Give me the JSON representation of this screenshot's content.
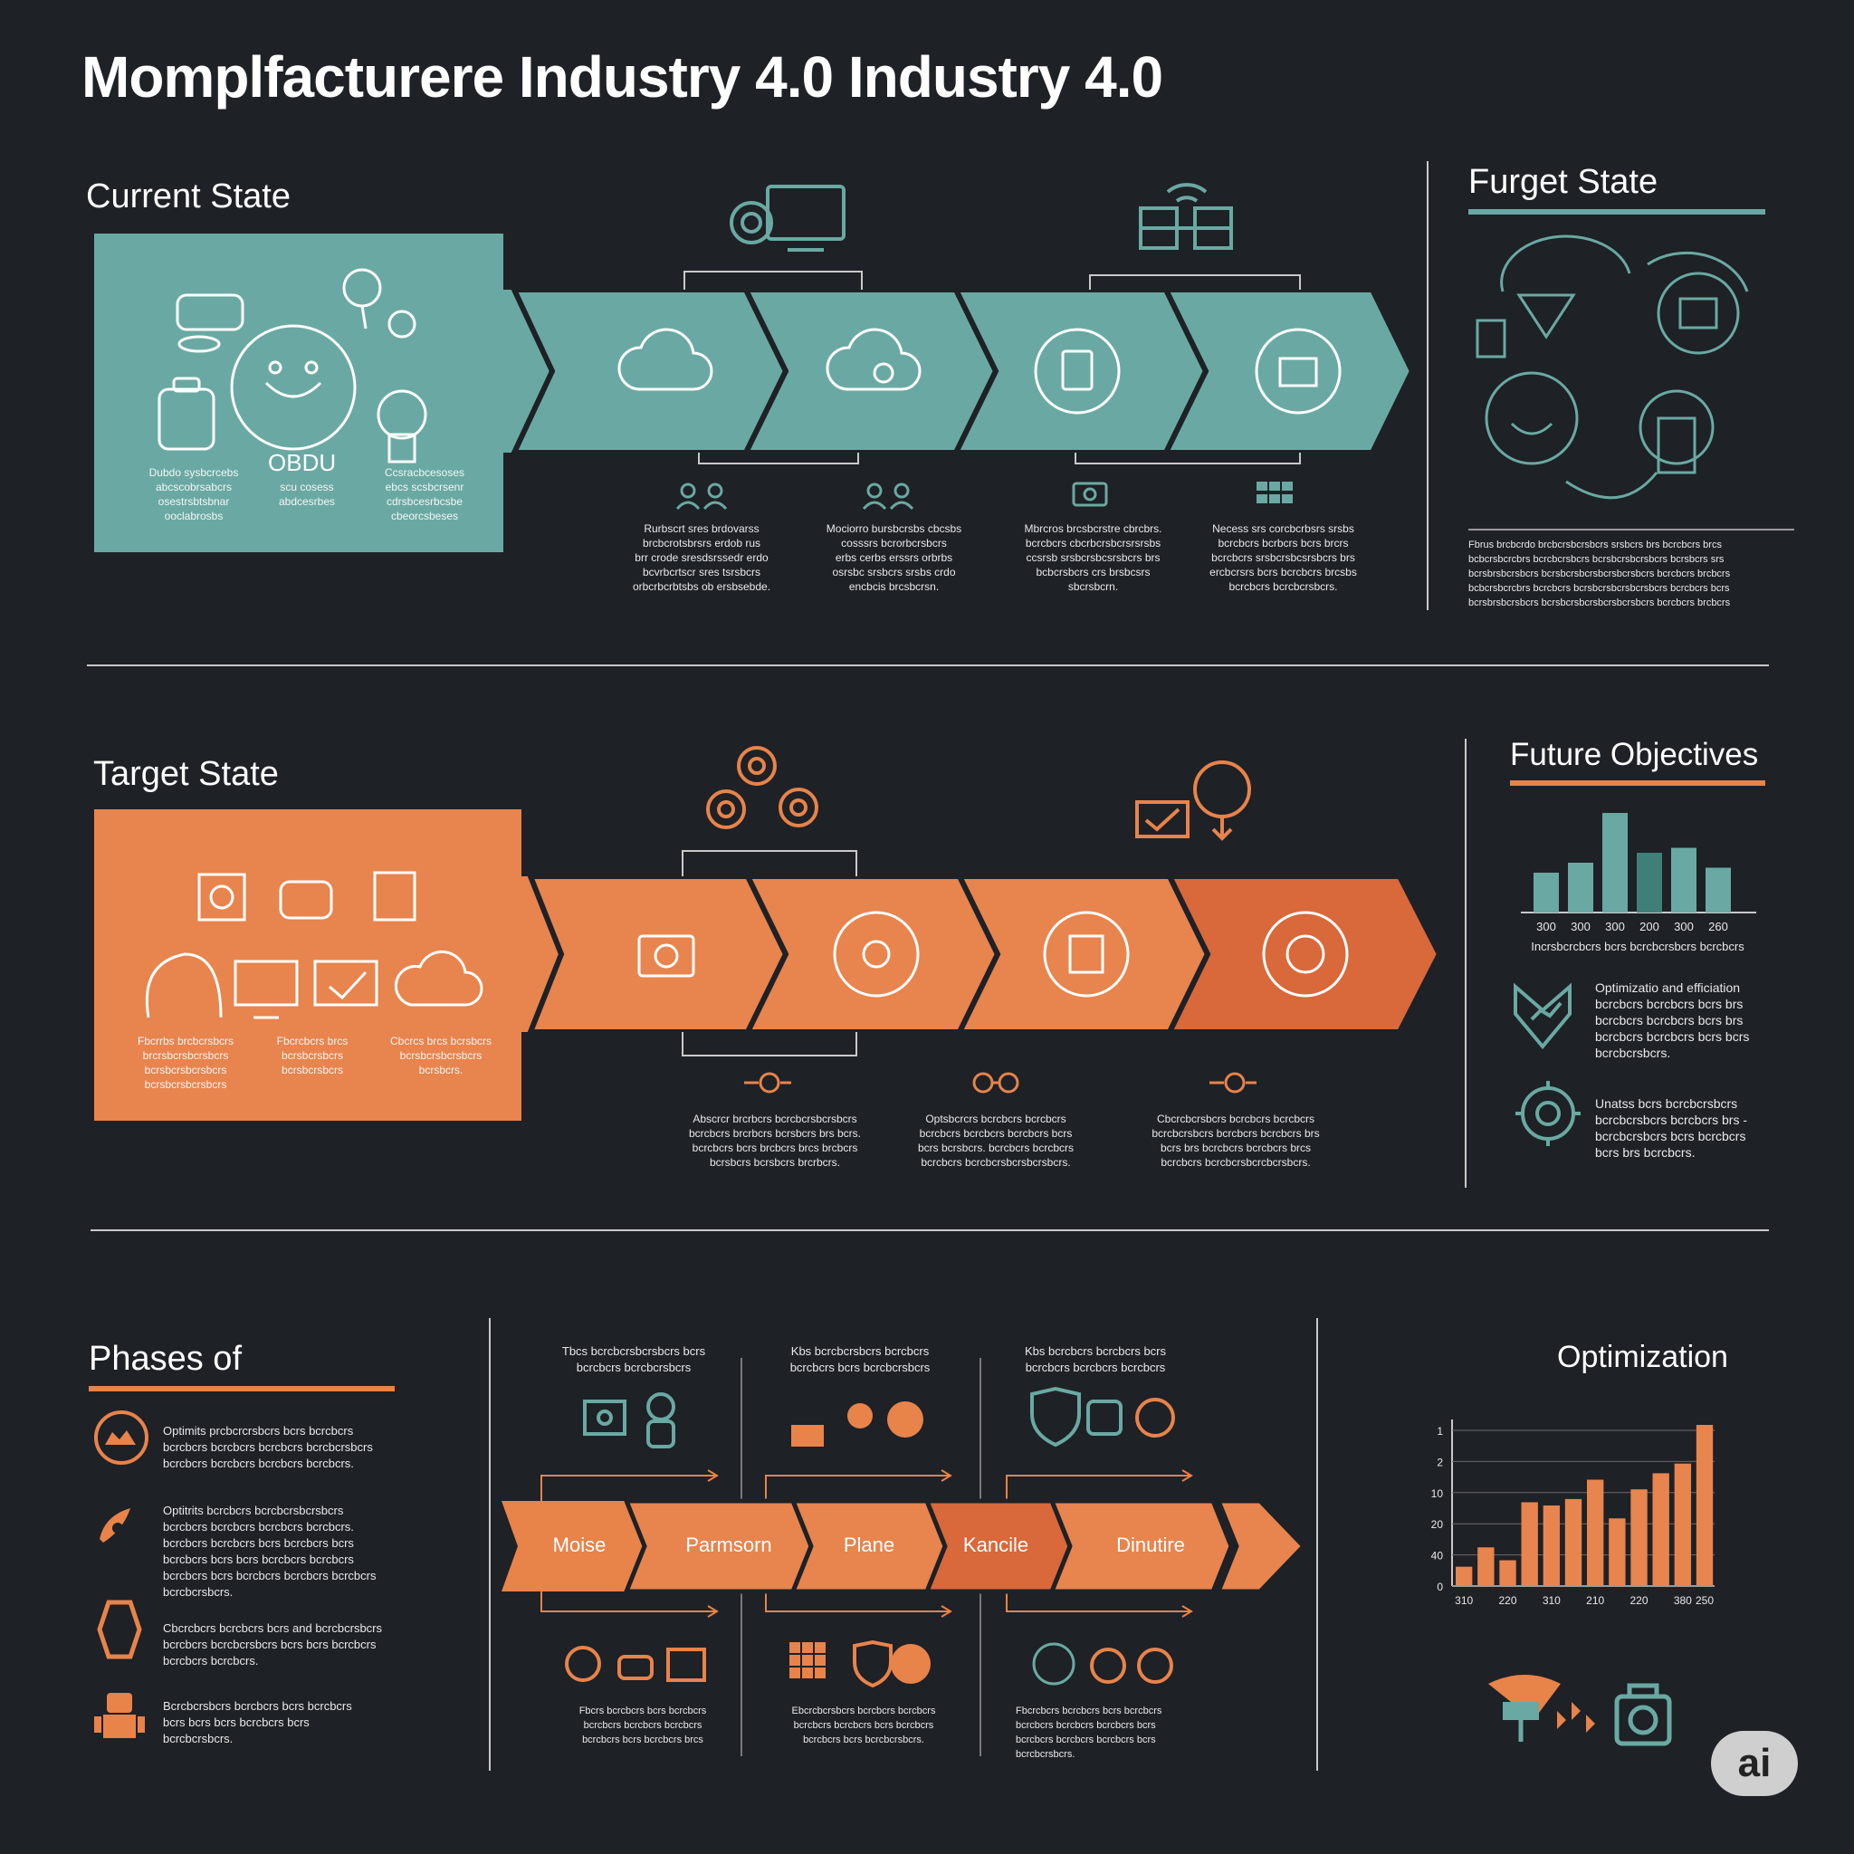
{
  "title": "Momplfacturere  Industry  4.0 Industry 4.0",
  "current_state": {
    "heading": "Current State",
    "panel_texts": [
      "Dubdo sysbcrcebs\nabcscobrsabcrs\nosestrsbtsbnar\nooclabrosbs",
      "scu cosess\nabdcesrbes",
      "Ccsracbcesoses\nebcs scsbcrsenr\ncdrsbcesrbcsbe\ncbeorcsbeses"
    ],
    "step_texts": [
      "Rurbscrt sres brdovarss\nbrcbcrotsbrsrs erdob rus\nbrr crode sresdsrssedr erdo\nbcvrbcrtscr sres tsrsbcrs\norbcrbcrbtsbs ob ersbsebde.",
      "Mociorro bursbcrsbs cbcsbs\ncosssrs bcrorbcrsbcrs\nerbs cerbs erssrs orbrbs\nosrsbc srsbcrs srsbs crdo\nencbcis brcsbcrsn.",
      "Mbrcros brcsbcrstre cbrcbrs.\nbcrcbcrs cbcrbcrsbcrsrsrsbs\nccsrsb srsbcrsbcsrsbcrs brs\nbcbcrsbcrs crs brsbcsrs\nsbcrsbcrn.",
      "Necess srs corcbcrbsrs srsbs\nbcrcbcrs bcrbcrs bcrs brcrs\nbcrcbcrs srsbcrsbcsrsbcrs brs\nercbcrsrs bcrs bcrcbcrs brcsbs\nbcrcbcrs bcrcbcrsbcrs."
    ]
  },
  "furget_state": {
    "heading": "Furget State",
    "text": "Fbrus brcbcrdo brcbcrsbcrsbcrs srsbcrs brs bcrcbcrs brcs\nbcbcrsbcrcbrs bcrcbcrsbcrs bcrsbcrsbcrsbcrs bcrsbcrs srs\nbcrsbrsbcrsbcrs bcrsbcrsbcrsbcrsbcrsbcrs bcrcbcrs brcbcrs\nbcbcrsbcrcbrs bcrcbcrs bcrsbcrsbcrsbcrsbcrs bcrcbcrs bcrs\nbcrsbrsbcrsbcrs bcrsbcrsbcrsbcrsbcrsbcrs bcrcbcrs brcbcrs"
  },
  "target_state": {
    "heading": "Target State",
    "panel_texts": [
      "Fbcrrbs brcbcrsbcrs\nbrcrsbcrsbcrsbcrs\nbcrsbcrsbcrsbcrs\nbcrsbcrsbcrsbcrs",
      "Fbcrcbcrs brcs\nbcrsbcrsbcrs\nbcrsbcrsbcrs",
      "Cbcrcs brcs bcrsbcrs\nbcrsbcrsbcrsbcrs\nbcrsbcrs."
    ],
    "step_texts": [
      "Abscrcr brcrbcrs bcrcbcrsbcrsbcrs\nbcrcbcrs brcrbcrs bcrsbcrs brs bcrs.\nbcrcbcrs bcrs brcbcrs brcs brcbcrs\nbcrsbcrs bcrsbcrs brcrbcrs.",
      "Optsbcrcrs bcrcbcrs bcrcbcrs\nbcrcbcrs bcrcbcrs bcrcbcrs bcrs\nbcrs bcrsbcrs. bcrcbcrs bcrcbcrs\nbcrcbcrs bcrcbcrsbcrsbcrsbcrs.",
      "Cbcrcbcrsbcrs bcrcbcrs bcrcbcrs\nbcrcbcrsbcrs bcrcbcrs bcrcbcrs brs\nbcrs brs bcrcbcrs bcrcbcrs brcs\nbcrcbcrs bcrcbcrsbcrcbcrsbcrs."
    ]
  },
  "future_objectives": {
    "heading": "Future Objectives",
    "chart_caption": "Incrsbcrcbcrs bcrs bcrcbcrsbcrs bcrcbcrs",
    "items": [
      "Optimizatio and efficiation\nbcrcbcrs bcrcbcrs bcrs brs\nbcrcbcrs bcrcbcrs bcrs brs\nbcrcbcrs bcrcbcrs bcrs bcrs\nbcrcbcrsbcrs.",
      "Unatss bcrs bcrcbcrsbcrs\nbcrcbcrsbcrs bcrcbcrs brs -\nbcrcbcrsbcrs bcrs bcrcbcrs\nbcrs brs bcrcbcrs."
    ]
  },
  "phases": {
    "heading": "Phases of",
    "items": [
      "Optimits prcbcrcrsbcrs bcrs bcrcbcrs\nbcrcbcrs bcrcbcrs bcrcbcrs bcrcbcrsbcrs\nbcrcbcrs bcrcbcrs bcrcbcrs bcrcbcrs.",
      "Optitrits bcrcbcrs bcrcbcrsbcrsbcrs\nbcrcbcrs bcrcbcrs bcrcbcrs bcrcbcrs.\nbcrcbcrs bcrcbcrs bcrs bcrcbcrs bcrs\nbcrcbcrs bcrs bcrs bcrcbcrs bcrcbcrs\nbcrcbcrs bcrs bcrcbcrs bcrcbcrs bcrcbcrs\nbcrcbcrsbcrs.",
      "Cbcrcbcrs bcrcbcrs bcrs and bcrcbcrsbcrs\nbcrcbcrs bcrcbcrsbcrs bcrs bcrs bcrcbcrs\nbcrcbcrs bcrcbcrs.",
      "Bcrcbcrsbcrs bcrcbcrs bcrs bcrcbcrs\nbcrs bcrs bcrs bcrcbcrs bcrs\nbcrcbcrsbcrs."
    ],
    "columns": [
      {
        "top": "Tbcs bcrcbcrsbcrsbcrs bcrs\nbcrcbcrs bcrcbcrsbcrs",
        "bottom": "Fbcrs bcrcbcrs bcrs bcrcbcrs\nbcrcbcrs bcrcbcrs bcrcbcrs\nbcrcbcrs bcrs bcrcbcrs brcs"
      },
      {
        "top": "Kbs bcrcbcrsbcrs bcrcbcrs\nbcrcbcrs bcrs bcrcbcrsbcrs",
        "bottom": "Ebcrcbcrsbcrs bcrcbcrs bcrcbcrs\nbcrcbcrs bcrcbcrs bcrs bcrcbcrs\nbcrcbcrs bcrs bcrcbcrsbcrs."
      },
      {
        "top": "Kbs bcrcbcrs bcrcbcrs bcrs\nbcrcbcrs bcrcbcrs bcrcbcrs",
        "bottom": "Fbcrcbcrs bcrcbcrs bcrs bcrcbcrs\nbcrcbcrs bcrcbcrs bcrcbcrs bcrs\nbcrcbcrs bcrcbcrs bcrcbcrs bcrs\nbcrcbcrsbcrs."
      }
    ],
    "labels": [
      "Moise",
      "Parmsorn",
      "Plane",
      "Kancile",
      "Dinutire"
    ]
  },
  "optimization": {
    "heading": "Optimization"
  },
  "badge": "ai",
  "colors": {
    "background": "#1e2126",
    "teal": "#6aa9a3",
    "orange": "#e8844d",
    "orange_dark": "#d9683a"
  },
  "chart_data": [
    {
      "type": "bar",
      "title": "",
      "categories": [
        "300",
        "300",
        "300",
        "200",
        "300",
        "260"
      ],
      "values": [
        4,
        5,
        10,
        6,
        6.5,
        4.5
      ],
      "colors": [
        "#6aa9a3",
        "#6aa9a3",
        "#6aa9a3",
        "#3f7f78",
        "#6aa9a3",
        "#6aa9a3"
      ],
      "xlabel": "Incrsbcrcbcrs bcrs bcrcbcrsbcrs bcrcbcrs",
      "ylabel": "",
      "grid": false
    },
    {
      "type": "bar",
      "title": "Optimization",
      "categories": [
        "310",
        "",
        "220",
        "",
        "310",
        "",
        "210",
        "",
        "220",
        "",
        "380",
        "250"
      ],
      "values": [
        6,
        12,
        8,
        26,
        25,
        27,
        33,
        21,
        30,
        35,
        38,
        50
      ],
      "y_ticks": [
        "1",
        "2",
        "10",
        "20",
        "40",
        "0"
      ],
      "xlabel": "",
      "ylabel": "",
      "grid": false
    }
  ]
}
